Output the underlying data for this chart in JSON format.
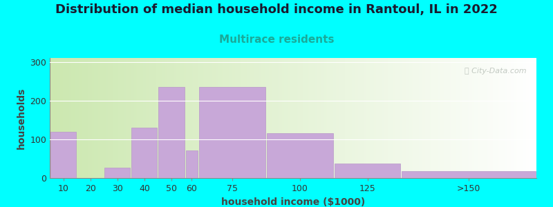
{
  "title": "Distribution of median household income in Rantoul, IL in 2022",
  "subtitle": "Multirace residents",
  "xlabel": "household income ($1000)",
  "ylabel": "households",
  "background_color": "#00FFFF",
  "bar_color": "#c8a8d8",
  "bar_edge_color": "#b898c8",
  "categories": [
    "10",
    "20",
    "30",
    "40",
    "50",
    "60",
    "75",
    "100",
    "125",
    ">150"
  ],
  "values": [
    120,
    0,
    27,
    130,
    235,
    72,
    235,
    115,
    38,
    18
  ],
  "bar_lefts": [
    5,
    15,
    25,
    35,
    45,
    55,
    60,
    85,
    110,
    135
  ],
  "bar_widths": [
    10,
    10,
    10,
    10,
    10,
    5,
    25,
    25,
    25,
    50
  ],
  "xlim": [
    5,
    185
  ],
  "ylim": [
    0,
    310
  ],
  "yticks": [
    0,
    100,
    200,
    300
  ],
  "title_fontsize": 13,
  "subtitle_fontsize": 11,
  "axis_label_fontsize": 10,
  "tick_fontsize": 9,
  "watermark_text": "ⓘ City-Data.com"
}
